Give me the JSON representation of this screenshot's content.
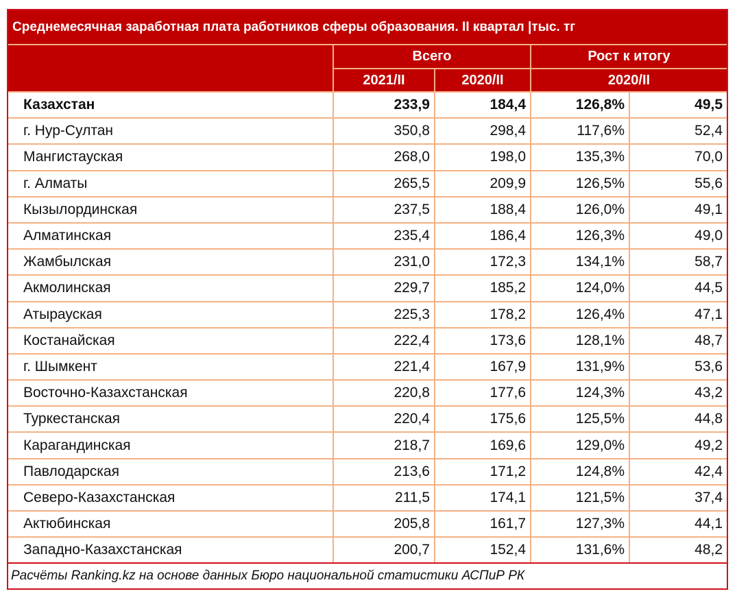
{
  "title": "Среднемесячная заработная плата работников сферы образования. II квартал |тыс. тг",
  "header": {
    "group1": "Всего",
    "group2": "Рост к итогу",
    "col_2021": "2021/II",
    "col_2020": "2020/II",
    "col_growth": "2020/II"
  },
  "colors": {
    "header_bg": "#c00000",
    "outer_border": "#d0101a",
    "grid_lines": "#f4b183"
  },
  "rows": [
    {
      "name": "Казахстан",
      "v2021": "233,9",
      "v2020": "184,4",
      "pct": "126,8%",
      "diff": "49,5",
      "bold": true
    },
    {
      "name": "г. Нур-Султан",
      "v2021": "350,8",
      "v2020": "298,4",
      "pct": "117,6%",
      "diff": "52,4"
    },
    {
      "name": "Мангистауская",
      "v2021": "268,0",
      "v2020": "198,0",
      "pct": "135,3%",
      "diff": "70,0"
    },
    {
      "name": "г. Алматы",
      "v2021": "265,5",
      "v2020": "209,9",
      "pct": "126,5%",
      "diff": "55,6"
    },
    {
      "name": "Кызылординская",
      "v2021": "237,5",
      "v2020": "188,4",
      "pct": "126,0%",
      "diff": "49,1"
    },
    {
      "name": "Алматинская",
      "v2021": "235,4",
      "v2020": "186,4",
      "pct": "126,3%",
      "diff": "49,0"
    },
    {
      "name": "Жамбылская",
      "v2021": "231,0",
      "v2020": "172,3",
      "pct": "134,1%",
      "diff": "58,7"
    },
    {
      "name": "Акмолинская",
      "v2021": "229,7",
      "v2020": "185,2",
      "pct": "124,0%",
      "diff": "44,5"
    },
    {
      "name": "Атырауская",
      "v2021": "225,3",
      "v2020": "178,2",
      "pct": "126,4%",
      "diff": "47,1"
    },
    {
      "name": "Костанайская",
      "v2021": "222,4",
      "v2020": "173,6",
      "pct": "128,1%",
      "diff": "48,7"
    },
    {
      "name": "г. Шымкент",
      "v2021": "221,4",
      "v2020": "167,9",
      "pct": "131,9%",
      "diff": "53,6"
    },
    {
      "name": "Восточно-Казахстанская",
      "v2021": "220,8",
      "v2020": "177,6",
      "pct": "124,3%",
      "diff": "43,2"
    },
    {
      "name": "Туркестанская",
      "v2021": "220,4",
      "v2020": "175,6",
      "pct": "125,5%",
      "diff": "44,8"
    },
    {
      "name": "Карагандинская",
      "v2021": "218,7",
      "v2020": "169,6",
      "pct": "129,0%",
      "diff": "49,2"
    },
    {
      "name": "Павлодарская",
      "v2021": "213,6",
      "v2020": "171,2",
      "pct": "124,8%",
      "diff": "42,4"
    },
    {
      "name": "Северо-Казахстанская",
      "v2021": "211,5",
      "v2020": "174,1",
      "pct": "121,5%",
      "diff": "37,4"
    },
    {
      "name": "Актюбинская",
      "v2021": "205,8",
      "v2020": "161,7",
      "pct": "127,3%",
      "diff": "44,1"
    },
    {
      "name": "Западно-Казахстанская",
      "v2021": "200,7",
      "v2020": "152,4",
      "pct": "131,6%",
      "diff": "48,2"
    }
  ],
  "footer": "Расчёты Ranking.kz на основе данных Бюро национальной статистики АСПиР РК"
}
